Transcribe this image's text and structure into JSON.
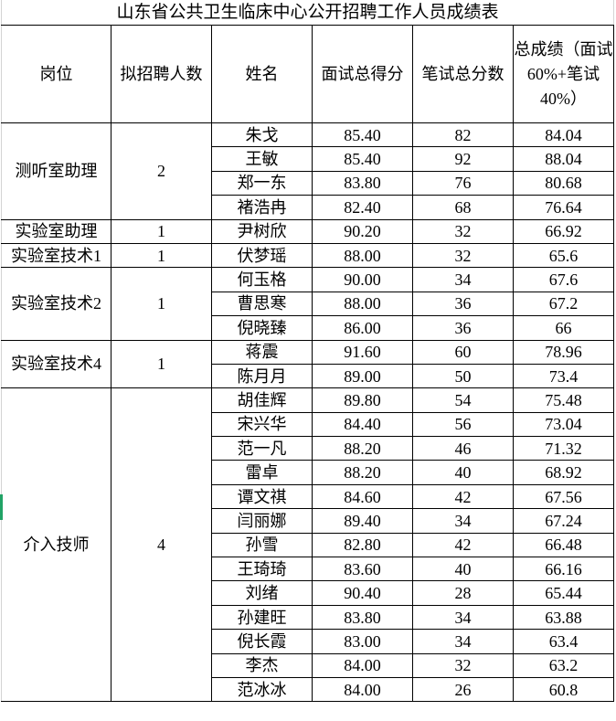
{
  "title": "山东省公共卫生临床中心公开招聘工作人员成绩表",
  "headers": {
    "position": "岗位",
    "quota": "拟招聘人数",
    "name": "姓名",
    "interview": "面试总得分",
    "written": "笔试总分数",
    "total": "总成绩（面试60%+笔试40%）"
  },
  "groups": [
    {
      "position": "测听室助理",
      "quota": "2",
      "rows": [
        {
          "name": "朱戈",
          "interview": "85.40",
          "written": "82",
          "total": "84.04"
        },
        {
          "name": "王敏",
          "interview": "85.40",
          "written": "92",
          "total": "88.04"
        },
        {
          "name": "郑一东",
          "interview": "83.80",
          "written": "76",
          "total": "80.68"
        },
        {
          "name": "褚浩冉",
          "interview": "82.40",
          "written": "68",
          "total": "76.64"
        }
      ]
    },
    {
      "position": "实验室助理",
      "quota": "1",
      "rows": [
        {
          "name": "尹树欣",
          "interview": "90.20",
          "written": "32",
          "total": "66.92"
        }
      ]
    },
    {
      "position": "实验室技术1",
      "quota": "1",
      "rows": [
        {
          "name": "伏梦瑶",
          "interview": "88.00",
          "written": "32",
          "total": "65.6"
        }
      ]
    },
    {
      "position": "实验室技术2",
      "quota": "1",
      "rows": [
        {
          "name": "何玉格",
          "interview": "90.00",
          "written": "34",
          "total": "67.6"
        },
        {
          "name": "曹思寒",
          "interview": "88.00",
          "written": "36",
          "total": "67.2"
        },
        {
          "name": "倪晓臻",
          "interview": "86.00",
          "written": "36",
          "total": "66"
        }
      ]
    },
    {
      "position": "实验室技术4",
      "quota": "1",
      "rows": [
        {
          "name": "蒋震",
          "interview": "91.60",
          "written": "60",
          "total": "78.96"
        },
        {
          "name": "陈月月",
          "interview": "89.00",
          "written": "50",
          "total": "73.4"
        }
      ]
    },
    {
      "position": "介入技师",
      "quota": "4",
      "rows": [
        {
          "name": "胡佳辉",
          "interview": "89.80",
          "written": "54",
          "total": "75.48"
        },
        {
          "name": "宋兴华",
          "interview": "84.40",
          "written": "56",
          "total": "73.04"
        },
        {
          "name": "范一凡",
          "interview": "88.20",
          "written": "46",
          "total": "71.32"
        },
        {
          "name": "雷卓",
          "interview": "88.20",
          "written": "40",
          "total": "68.92"
        },
        {
          "name": "谭文祺",
          "interview": "84.60",
          "written": "42",
          "total": "67.56"
        },
        {
          "name": "闫丽娜",
          "interview": "89.40",
          "written": "34",
          "total": "67.24"
        },
        {
          "name": "孙雪",
          "interview": "82.80",
          "written": "42",
          "total": "66.48"
        },
        {
          "name": "王琦琦",
          "interview": "83.60",
          "written": "40",
          "total": "66.16"
        },
        {
          "name": "刘绪",
          "interview": "90.40",
          "written": "28",
          "total": "65.44"
        },
        {
          "name": "孙建旺",
          "interview": "83.80",
          "written": "34",
          "total": "63.88"
        },
        {
          "name": "倪长霞",
          "interview": "83.00",
          "written": "34",
          "total": "63.4"
        },
        {
          "name": "李杰",
          "interview": "84.00",
          "written": "32",
          "total": "63.2"
        },
        {
          "name": "范冰冰",
          "interview": "84.00",
          "written": "26",
          "total": "60.8"
        }
      ]
    }
  ],
  "colors": {
    "grid": "#000000",
    "selection": "#21a366"
  }
}
